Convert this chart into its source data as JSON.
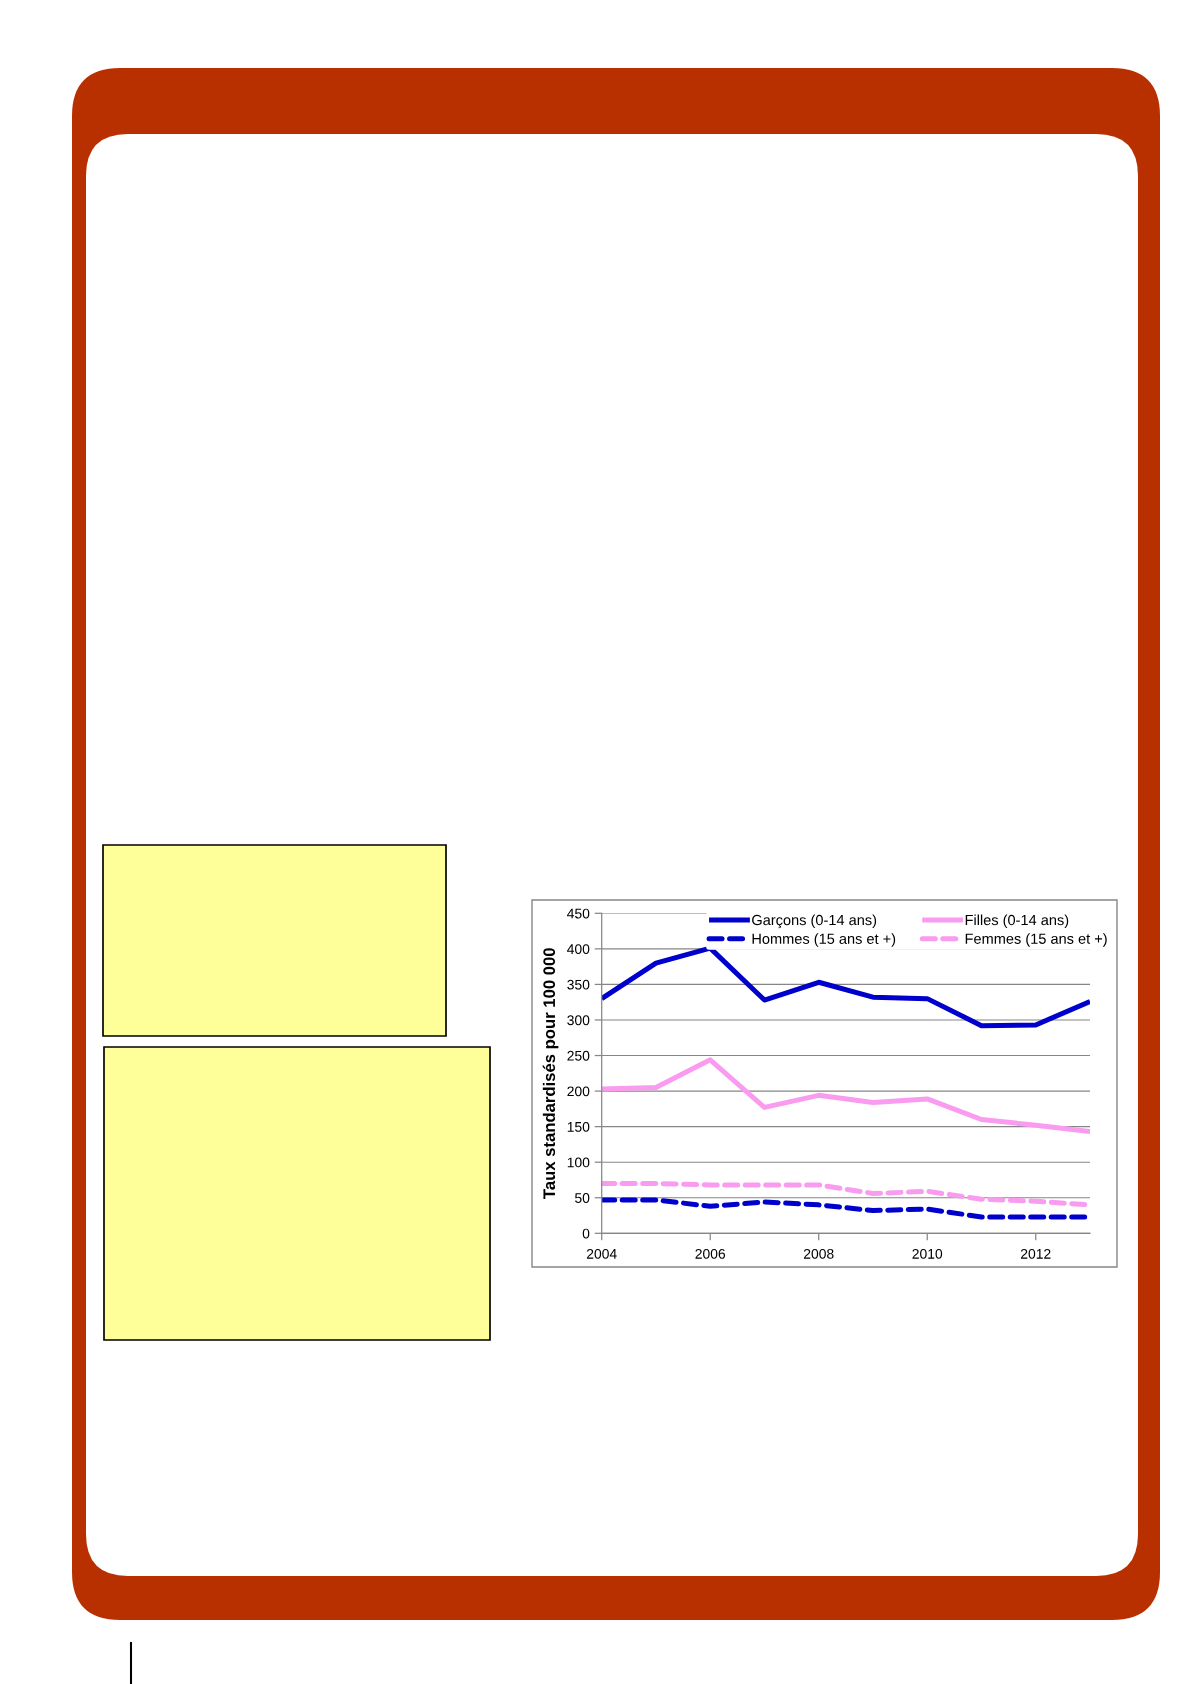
{
  "chart_data": {
    "type": "line",
    "ylabel": "Taux standardisés pour 100 000",
    "x": [
      2004,
      2005,
      2006,
      2007,
      2008,
      2009,
      2010,
      2011,
      2012,
      2013
    ],
    "series": [
      {
        "name": "Garçons (0-14 ans)",
        "color": "#0000cc",
        "line_style": "solid",
        "values": [
          330,
          380,
          401,
          328,
          353,
          332,
          330,
          292,
          293,
          326
        ]
      },
      {
        "name": "Filles (0-14 ans)",
        "color": "#f99cf0",
        "line_style": "solid",
        "values": [
          203,
          205,
          244,
          177,
          194,
          184,
          189,
          160,
          152,
          143
        ]
      },
      {
        "name": "Hommes (15 ans et +)",
        "color": "#0000cc",
        "line_style": "dashed",
        "values": [
          47,
          47,
          38,
          44,
          40,
          32,
          34,
          23,
          23,
          23
        ]
      },
      {
        "name": "Femmes (15 ans et +)",
        "color": "#f99cf0",
        "line_style": "dashed",
        "values": [
          70,
          70,
          68,
          68,
          68,
          56,
          59,
          48,
          45,
          40
        ]
      }
    ],
    "xlim": [
      2004,
      2013
    ],
    "ylim": [
      0,
      450
    ],
    "xticks": [
      2004,
      2006,
      2008,
      2010,
      2012
    ],
    "yticks": [
      0,
      50,
      100,
      150,
      200,
      250,
      300,
      350,
      400,
      450
    ],
    "grid": "y",
    "legend": "top right"
  }
}
